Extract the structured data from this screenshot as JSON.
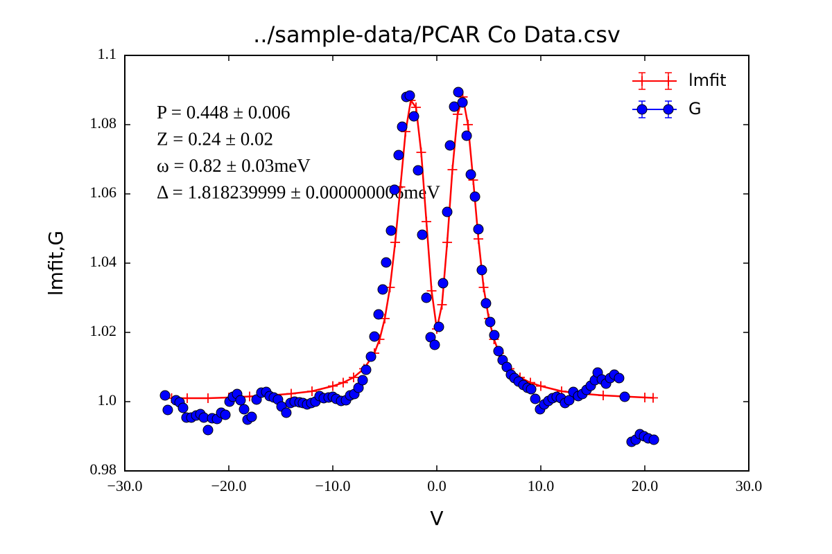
{
  "chart_data": {
    "type": "scatter",
    "title": "../sample-data/PCAR Co Data.csv",
    "xlabel": "V",
    "ylabel": "lmfit,G",
    "xlim": [
      -30,
      30
    ],
    "ylim": [
      0.98,
      1.1
    ],
    "xticks": [
      {
        "value": -30,
        "label": "−30.0"
      },
      {
        "value": -20,
        "label": "−20.0"
      },
      {
        "value": -10,
        "label": "−10.0"
      },
      {
        "value": 0,
        "label": "0.0"
      },
      {
        "value": 10,
        "label": "10.0"
      },
      {
        "value": 20,
        "label": "20.0"
      },
      {
        "value": 30,
        "label": "30.0"
      }
    ],
    "yticks": [
      0.98,
      {
        "value": 1.0,
        "label": "1.0"
      },
      1.02,
      1.04,
      1.06,
      1.08,
      1.1
    ],
    "grid": false,
    "legend": "upper right",
    "annotations": [
      "P = 0.448 ± 0.006",
      "Z = 0.24 ± 0.02",
      "ω = 0.82 ± 0.03meV",
      "Δ = 1.818239999 ± 0.000000006meV"
    ],
    "series": [
      {
        "name": "lmfit",
        "color": "#ff0000",
        "line": true,
        "marker": "+",
        "x": [
          -25.5,
          -24,
          -22,
          -20,
          -18,
          -16,
          -14,
          -12,
          -10,
          -9,
          -8,
          -7,
          -6,
          -5.5,
          -5,
          -4.5,
          -4,
          -3.5,
          -3,
          -2.5,
          -2,
          -1.5,
          -1,
          -0.5,
          0,
          0.5,
          1,
          1.5,
          2,
          2.5,
          3,
          3.5,
          4,
          4.5,
          5,
          5.5,
          6,
          7,
          8,
          9,
          10,
          12,
          14,
          16,
          18,
          20,
          20.8
        ],
        "values": [
          1.001,
          1.001,
          1.001,
          1.0012,
          1.0015,
          1.0018,
          1.0023,
          1.003,
          1.0045,
          1.0055,
          1.007,
          1.0095,
          1.014,
          1.018,
          1.024,
          1.033,
          1.046,
          1.062,
          1.078,
          1.087,
          1.085,
          1.072,
          1.052,
          1.032,
          1.021,
          1.028,
          1.046,
          1.067,
          1.083,
          1.088,
          1.08,
          1.064,
          1.047,
          1.033,
          1.024,
          1.018,
          1.014,
          1.0095,
          1.007,
          1.0055,
          1.0045,
          1.003,
          1.0023,
          1.0018,
          1.0015,
          1.0012,
          1.0011
        ]
      },
      {
        "name": "G",
        "color": "#0000ff",
        "line": false,
        "marker": "o",
        "x": [
          -26.13,
          -25.87,
          -25.07,
          -24.73,
          -24.4,
          -24.07,
          -23.6,
          -23.13,
          -22.73,
          -22.4,
          -22.0,
          -21.6,
          -21.13,
          -20.73,
          -20.33,
          -19.93,
          -19.6,
          -19.2,
          -18.87,
          -18.53,
          -18.2,
          -17.8,
          -17.33,
          -16.87,
          -16.4,
          -16.07,
          -15.67,
          -15.27,
          -14.93,
          -14.47,
          -14.07,
          -13.67,
          -13.2,
          -12.87,
          -12.47,
          -12.07,
          -11.67,
          -11.27,
          -10.87,
          -10.4,
          -10.0,
          -9.67,
          -9.2,
          -8.73,
          -8.33,
          -7.93,
          -7.53,
          -7.13,
          -6.8,
          -6.33,
          -6.0,
          -5.6,
          -5.2,
          -4.87,
          -4.4,
          -4.07,
          -3.67,
          -3.33,
          -2.93,
          -2.6,
          -2.2,
          -1.8,
          -1.4,
          -1.0,
          -0.6,
          -0.2,
          0.2,
          0.6,
          1.0,
          1.27,
          1.67,
          2.07,
          2.47,
          2.87,
          3.27,
          3.67,
          4.0,
          4.33,
          4.73,
          5.13,
          5.53,
          5.93,
          6.33,
          6.73,
          7.13,
          7.47,
          7.87,
          8.33,
          8.73,
          9.07,
          9.47,
          9.93,
          10.33,
          10.73,
          11.13,
          11.53,
          11.93,
          12.33,
          12.73,
          13.13,
          13.6,
          14.0,
          14.4,
          14.8,
          15.2,
          15.47,
          15.87,
          16.27,
          16.67,
          17.07,
          17.53,
          18.07,
          18.73,
          19.13,
          19.53,
          19.93,
          20.33,
          20.87
        ],
        "values": [
          1.0018,
          0.9976,
          1.0004,
          0.9998,
          0.9982,
          0.9954,
          0.9954,
          0.996,
          0.9964,
          0.9954,
          0.9918,
          0.9952,
          0.995,
          0.9968,
          0.9962,
          1.0,
          1.0014,
          1.0022,
          1.0004,
          0.9978,
          0.9948,
          0.9956,
          1.0006,
          1.0026,
          1.0028,
          1.0016,
          1.0012,
          1.0006,
          0.9986,
          0.9968,
          0.9996,
          1.0,
          0.9998,
          0.9996,
          0.9992,
          0.9996,
          1.0,
          1.0016,
          1.001,
          1.0012,
          1.0014,
          1.0008,
          1.0002,
          1.0004,
          1.0018,
          1.0022,
          1.004,
          1.0062,
          1.0092,
          1.013,
          1.0188,
          1.0252,
          1.0324,
          1.0402,
          1.0494,
          1.0612,
          1.0712,
          1.0794,
          1.088,
          1.0884,
          1.0824,
          1.0668,
          1.0482,
          1.03,
          1.0186,
          1.0164,
          1.0216,
          1.0342,
          1.0548,
          1.074,
          1.0852,
          1.0894,
          1.0864,
          1.0768,
          1.0656,
          1.0592,
          1.0498,
          1.038,
          1.0284,
          1.023,
          1.0192,
          1.0146,
          1.012,
          1.01,
          1.0078,
          1.0068,
          1.0058,
          1.0048,
          1.004,
          1.0036,
          1.0008,
          0.9978,
          0.9992,
          1.0002,
          1.001,
          1.0014,
          1.001,
          0.9996,
          1.0004,
          1.0028,
          1.0016,
          1.0022,
          1.0034,
          1.0046,
          1.0062,
          1.0084,
          1.0064,
          1.0052,
          1.0068,
          1.0078,
          1.0068,
          1.0014,
          0.9884,
          0.989,
          0.9906,
          0.99,
          0.9894,
          0.989
        ]
      }
    ]
  }
}
